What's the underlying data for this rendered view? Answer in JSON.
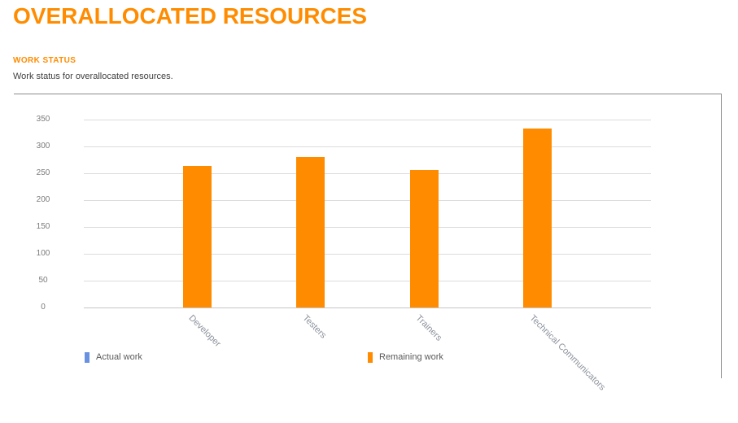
{
  "page": {
    "title": "OVERALLOCATED RESOURCES",
    "section_heading": "WORK STATUS",
    "section_description": "Work status for overallocated resources."
  },
  "colors": {
    "accent_orange": "#FF8C00",
    "actual_work_blue": "#6991E1",
    "remaining_work_orange": "#FF8C00",
    "gridline": "#DCDCDC",
    "axis_text": "#7B7B7B",
    "panel_border": "#8C8C8C"
  },
  "chart_data": {
    "type": "bar",
    "title": "WORK STATUS",
    "categories": [
      "Developer",
      "Testers",
      "Trainers",
      "Technical Communicators"
    ],
    "series": [
      {
        "name": "Actual work",
        "color": "#6991E1",
        "values": [
          0,
          0,
          0,
          0
        ]
      },
      {
        "name": "Remaining work",
        "color": "#FF8C00",
        "values": [
          264,
          280,
          256,
          334
        ]
      }
    ],
    "xlabel": "",
    "ylabel": "",
    "ylim": [
      0,
      350
    ],
    "ytick_step": 50,
    "yticks": [
      0,
      50,
      100,
      150,
      200,
      250,
      300,
      350
    ],
    "grid": true,
    "legend_position": "bottom",
    "legend": [
      {
        "label": "Actual work",
        "color": "#6991E1"
      },
      {
        "label": "Remaining work",
        "color": "#FF8C00"
      }
    ]
  }
}
